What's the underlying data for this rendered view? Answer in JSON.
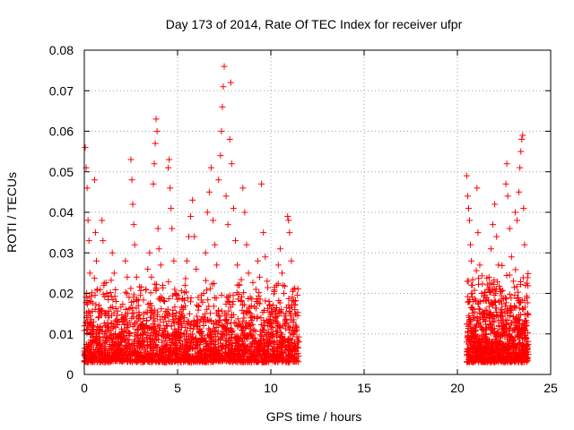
{
  "chart_data": {
    "type": "scatter",
    "title": "Day 173 of 2014, Rate Of TEC Index for receiver ufpr",
    "xlabel": "GPS time / hours",
    "ylabel": "ROTI / TECUs",
    "xlim": [
      0,
      25
    ],
    "ylim": [
      0,
      0.08
    ],
    "xticks": [
      0,
      5,
      10,
      15,
      20,
      25
    ],
    "xtick_labels": [
      "0",
      "5",
      "10",
      "15",
      "20",
      "25"
    ],
    "yticks": [
      0,
      0.01,
      0.02,
      0.03,
      0.04,
      0.05,
      0.06,
      0.07,
      0.08
    ],
    "ytick_labels": [
      "0",
      "0.01",
      "0.02",
      "0.03",
      "0.04",
      "0.05",
      "0.06",
      "0.07",
      "0.08"
    ],
    "grid": true,
    "marker": "+",
    "color": "#ff0000",
    "series": [
      {
        "name": "ROTI",
        "points": [
          [
            0.0,
            0.012
          ],
          [
            0.05,
            0.056
          ],
          [
            0.1,
            0.051
          ],
          [
            0.15,
            0.046
          ],
          [
            0.2,
            0.038
          ],
          [
            0.25,
            0.033
          ],
          [
            0.3,
            0.025
          ],
          [
            0.35,
            0.018
          ],
          [
            0.4,
            0.011
          ],
          [
            0.45,
            0.008
          ],
          [
            0.5,
            0.006
          ],
          [
            0.55,
            0.048
          ],
          [
            0.6,
            0.035
          ],
          [
            0.65,
            0.028
          ],
          [
            0.7,
            0.021
          ],
          [
            0.75,
            0.014
          ],
          [
            0.8,
            0.01
          ],
          [
            0.85,
            0.007
          ],
          [
            0.9,
            0.005
          ],
          [
            0.95,
            0.038
          ],
          [
            1.0,
            0.033
          ],
          [
            1.05,
            0.022
          ],
          [
            1.1,
            0.015
          ],
          [
            1.15,
            0.012
          ],
          [
            1.2,
            0.009
          ],
          [
            1.3,
            0.006
          ],
          [
            1.4,
            0.011
          ],
          [
            1.5,
            0.03
          ],
          [
            1.6,
            0.025
          ],
          [
            1.7,
            0.018
          ],
          [
            1.8,
            0.013
          ],
          [
            1.9,
            0.01
          ],
          [
            2.0,
            0.008
          ],
          [
            2.1,
            0.014
          ],
          [
            2.2,
            0.028
          ],
          [
            2.3,
            0.024
          ],
          [
            2.4,
            0.019
          ],
          [
            2.5,
            0.053
          ],
          [
            2.55,
            0.048
          ],
          [
            2.6,
            0.042
          ],
          [
            2.65,
            0.037
          ],
          [
            2.7,
            0.032
          ],
          [
            2.8,
            0.024
          ],
          [
            2.9,
            0.017
          ],
          [
            3.0,
            0.012
          ],
          [
            3.1,
            0.009
          ],
          [
            3.2,
            0.015
          ],
          [
            3.3,
            0.021
          ],
          [
            3.4,
            0.026
          ],
          [
            3.5,
            0.03
          ],
          [
            3.6,
            0.024
          ],
          [
            3.7,
            0.047
          ],
          [
            3.75,
            0.052
          ],
          [
            3.8,
            0.057
          ],
          [
            3.85,
            0.063
          ],
          [
            3.9,
            0.06
          ],
          [
            3.95,
            0.036
          ],
          [
            4.0,
            0.031
          ],
          [
            4.1,
            0.027
          ],
          [
            4.2,
            0.022
          ],
          [
            4.3,
            0.018
          ],
          [
            4.4,
            0.012
          ],
          [
            4.5,
            0.051
          ],
          [
            4.55,
            0.053
          ],
          [
            4.6,
            0.046
          ],
          [
            4.65,
            0.041
          ],
          [
            4.7,
            0.036
          ],
          [
            4.8,
            0.028
          ],
          [
            4.9,
            0.02
          ],
          [
            5.0,
            0.013
          ],
          [
            5.1,
            0.009
          ],
          [
            5.2,
            0.012
          ],
          [
            5.3,
            0.016
          ],
          [
            5.4,
            0.022
          ],
          [
            5.5,
            0.028
          ],
          [
            5.6,
            0.034
          ],
          [
            5.7,
            0.039
          ],
          [
            5.8,
            0.043
          ],
          [
            5.9,
            0.034
          ],
          [
            6.0,
            0.026
          ],
          [
            6.1,
            0.019
          ],
          [
            6.2,
            0.013
          ],
          [
            6.3,
            0.009
          ],
          [
            6.4,
            0.02
          ],
          [
            6.5,
            0.03
          ],
          [
            6.6,
            0.04
          ],
          [
            6.7,
            0.045
          ],
          [
            6.8,
            0.051
          ],
          [
            6.9,
            0.038
          ],
          [
            7.0,
            0.032
          ],
          [
            7.1,
            0.027
          ],
          [
            7.2,
            0.048
          ],
          [
            7.3,
            0.054
          ],
          [
            7.35,
            0.06
          ],
          [
            7.4,
            0.066
          ],
          [
            7.45,
            0.071
          ],
          [
            7.5,
            0.076
          ],
          [
            7.6,
            0.044
          ],
          [
            7.7,
            0.037
          ],
          [
            7.8,
            0.058
          ],
          [
            7.85,
            0.072
          ],
          [
            7.9,
            0.052
          ],
          [
            8.0,
            0.041
          ],
          [
            8.1,
            0.033
          ],
          [
            8.2,
            0.027
          ],
          [
            8.3,
            0.022
          ],
          [
            8.4,
            0.018
          ],
          [
            8.5,
            0.046
          ],
          [
            8.6,
            0.04
          ],
          [
            8.7,
            0.032
          ],
          [
            8.8,
            0.025
          ],
          [
            8.9,
            0.019
          ],
          [
            9.0,
            0.014
          ],
          [
            9.1,
            0.011
          ],
          [
            9.2,
            0.021
          ],
          [
            9.3,
            0.028
          ],
          [
            9.4,
            0.024
          ],
          [
            9.5,
            0.047
          ],
          [
            9.6,
            0.035
          ],
          [
            9.7,
            0.029
          ],
          [
            9.8,
            0.023
          ],
          [
            9.9,
            0.018
          ],
          [
            10.0,
            0.013
          ],
          [
            10.1,
            0.01
          ],
          [
            10.2,
            0.016
          ],
          [
            10.3,
            0.022
          ],
          [
            10.4,
            0.027
          ],
          [
            10.5,
            0.031
          ],
          [
            10.6,
            0.025
          ],
          [
            10.7,
            0.02
          ],
          [
            10.8,
            0.015
          ],
          [
            10.9,
            0.039
          ],
          [
            10.95,
            0.038
          ],
          [
            11.0,
            0.035
          ],
          [
            11.1,
            0.028
          ],
          [
            11.2,
            0.021
          ],
          [
            11.3,
            0.015
          ],
          [
            11.4,
            0.011
          ],
          [
            11.5,
            0.008
          ],
          [
            20.5,
            0.049
          ],
          [
            20.55,
            0.044
          ],
          [
            20.6,
            0.041
          ],
          [
            20.65,
            0.038
          ],
          [
            20.7,
            0.032
          ],
          [
            20.75,
            0.028
          ],
          [
            20.8,
            0.022
          ],
          [
            20.85,
            0.018
          ],
          [
            20.9,
            0.014
          ],
          [
            20.95,
            0.011
          ],
          [
            21.0,
            0.009
          ],
          [
            21.05,
            0.046
          ],
          [
            21.1,
            0.035
          ],
          [
            21.2,
            0.027
          ],
          [
            21.3,
            0.02
          ],
          [
            21.4,
            0.015
          ],
          [
            21.5,
            0.011
          ],
          [
            21.6,
            0.008
          ],
          [
            21.7,
            0.024
          ],
          [
            21.8,
            0.031
          ],
          [
            21.9,
            0.037
          ],
          [
            22.0,
            0.042
          ],
          [
            22.1,
            0.034
          ],
          [
            22.2,
            0.027
          ],
          [
            22.3,
            0.021
          ],
          [
            22.4,
            0.016
          ],
          [
            22.5,
            0.012
          ],
          [
            22.6,
            0.047
          ],
          [
            22.65,
            0.052
          ],
          [
            22.7,
            0.044
          ],
          [
            22.8,
            0.036
          ],
          [
            22.9,
            0.029
          ],
          [
            23.0,
            0.023
          ],
          [
            23.1,
            0.04
          ],
          [
            23.2,
            0.038
          ],
          [
            23.3,
            0.045
          ],
          [
            23.35,
            0.051
          ],
          [
            23.4,
            0.055
          ],
          [
            23.45,
            0.058
          ],
          [
            23.5,
            0.059
          ],
          [
            23.55,
            0.041
          ],
          [
            23.6,
            0.032
          ],
          [
            23.65,
            0.022
          ],
          [
            23.7,
            0.012
          ],
          [
            23.75,
            0.007
          ],
          [
            23.8,
            0.005
          ]
        ]
      }
    ],
    "dense_bands": [
      {
        "x_range": [
          0,
          11.5
        ],
        "y_range": [
          0.003,
          0.024
        ],
        "count": 2200
      },
      {
        "x_range": [
          20.5,
          23.8
        ],
        "y_range": [
          0.003,
          0.028
        ],
        "count": 900
      }
    ]
  }
}
